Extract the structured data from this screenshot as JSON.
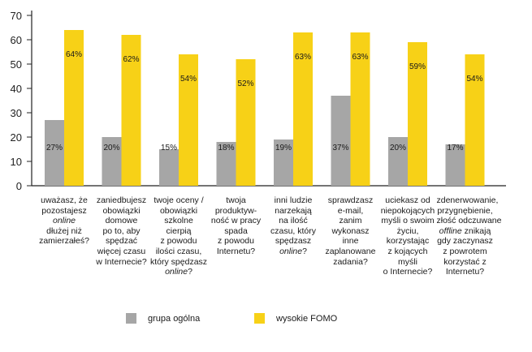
{
  "chart_data": {
    "type": "bar",
    "ylim": [
      0,
      70
    ],
    "yticks": [
      "0",
      "10",
      "20",
      "30",
      "40",
      "50",
      "60",
      "70"
    ],
    "categories": [
      [
        [
          [
            "uważasz, że",
            ""
          ]
        ],
        [
          [
            "pozostajesz",
            ""
          ]
        ],
        [
          [
            "online",
            "i"
          ]
        ],
        [
          [
            "dłużej niż",
            ""
          ]
        ],
        [
          [
            "zamierzałeś?",
            ""
          ]
        ]
      ],
      [
        [
          [
            "zaniedbujesz",
            ""
          ]
        ],
        [
          [
            "obowiązki",
            ""
          ]
        ],
        [
          [
            "domowe",
            ""
          ]
        ],
        [
          [
            "po to, aby",
            ""
          ]
        ],
        [
          [
            "spędzać",
            ""
          ]
        ],
        [
          [
            "więcej czasu",
            ""
          ]
        ],
        [
          [
            "w Internecie?",
            ""
          ]
        ]
      ],
      [
        [
          [
            "twoje oceny /",
            ""
          ]
        ],
        [
          [
            "obowiązki",
            ""
          ]
        ],
        [
          [
            "szkolne",
            ""
          ]
        ],
        [
          [
            "cierpią",
            ""
          ]
        ],
        [
          [
            "z powodu",
            ""
          ]
        ],
        [
          [
            "ilości czasu,",
            ""
          ]
        ],
        [
          [
            "który spędzasz",
            ""
          ]
        ],
        [
          [
            "online",
            "i"
          ],
          [
            "?",
            ""
          ]
        ]
      ],
      [
        [
          [
            "twoja",
            ""
          ]
        ],
        [
          [
            "produktyw-",
            ""
          ]
        ],
        [
          [
            "ność w pracy",
            ""
          ]
        ],
        [
          [
            "spada",
            ""
          ]
        ],
        [
          [
            "z powodu",
            ""
          ]
        ],
        [
          [
            "Internetu?",
            ""
          ]
        ]
      ],
      [
        [
          [
            "inni ludzie",
            ""
          ]
        ],
        [
          [
            "narzekają",
            ""
          ]
        ],
        [
          [
            "na ilość",
            ""
          ]
        ],
        [
          [
            "czasu, który",
            ""
          ]
        ],
        [
          [
            "spędzasz",
            ""
          ]
        ],
        [
          [
            "online",
            "i"
          ],
          [
            "?",
            ""
          ]
        ]
      ],
      [
        [
          [
            "sprawdzasz",
            ""
          ]
        ],
        [
          [
            "e-mail,",
            ""
          ]
        ],
        [
          [
            "zanim",
            ""
          ]
        ],
        [
          [
            "wykonasz",
            ""
          ]
        ],
        [
          [
            "inne",
            ""
          ]
        ],
        [
          [
            "zaplanowane",
            ""
          ]
        ],
        [
          [
            "zadania?",
            ""
          ]
        ]
      ],
      [
        [
          [
            "uciekasz od",
            ""
          ]
        ],
        [
          [
            "niepokojących",
            ""
          ]
        ],
        [
          [
            "myśli o swoim",
            ""
          ]
        ],
        [
          [
            "życiu,",
            ""
          ]
        ],
        [
          [
            "korzystając",
            ""
          ]
        ],
        [
          [
            "z kojących",
            ""
          ]
        ],
        [
          [
            "myśli",
            ""
          ]
        ],
        [
          [
            "o Internecie?",
            ""
          ]
        ]
      ],
      [
        [
          [
            "zdenerwowanie,",
            ""
          ]
        ],
        [
          [
            "przygnębienie,",
            ""
          ]
        ],
        [
          [
            "złość odczuwane",
            ""
          ]
        ],
        [
          [
            "offline",
            "i"
          ],
          [
            " znikają",
            ""
          ]
        ],
        [
          [
            "gdy zaczynasz",
            ""
          ]
        ],
        [
          [
            "z powrotem",
            ""
          ]
        ],
        [
          [
            "korzystać z",
            ""
          ]
        ],
        [
          [
            "Internetu?",
            ""
          ]
        ]
      ]
    ],
    "series": [
      {
        "name": "grupa ogólna",
        "color": "#a6a6a6",
        "values": [
          27,
          20,
          15,
          18,
          19,
          37,
          20,
          17
        ],
        "labels": [
          "27%",
          "20%",
          "15%",
          "18%",
          "19%",
          "37%",
          "20%",
          "17%"
        ]
      },
      {
        "name": "wysokie FOMO",
        "color": "#f7d117",
        "values": [
          64,
          62,
          54,
          52,
          63,
          63,
          59,
          54
        ],
        "labels": [
          "64%",
          "62%",
          "54%",
          "52%",
          "63%",
          "63%",
          "59%",
          "54%"
        ]
      }
    ]
  }
}
